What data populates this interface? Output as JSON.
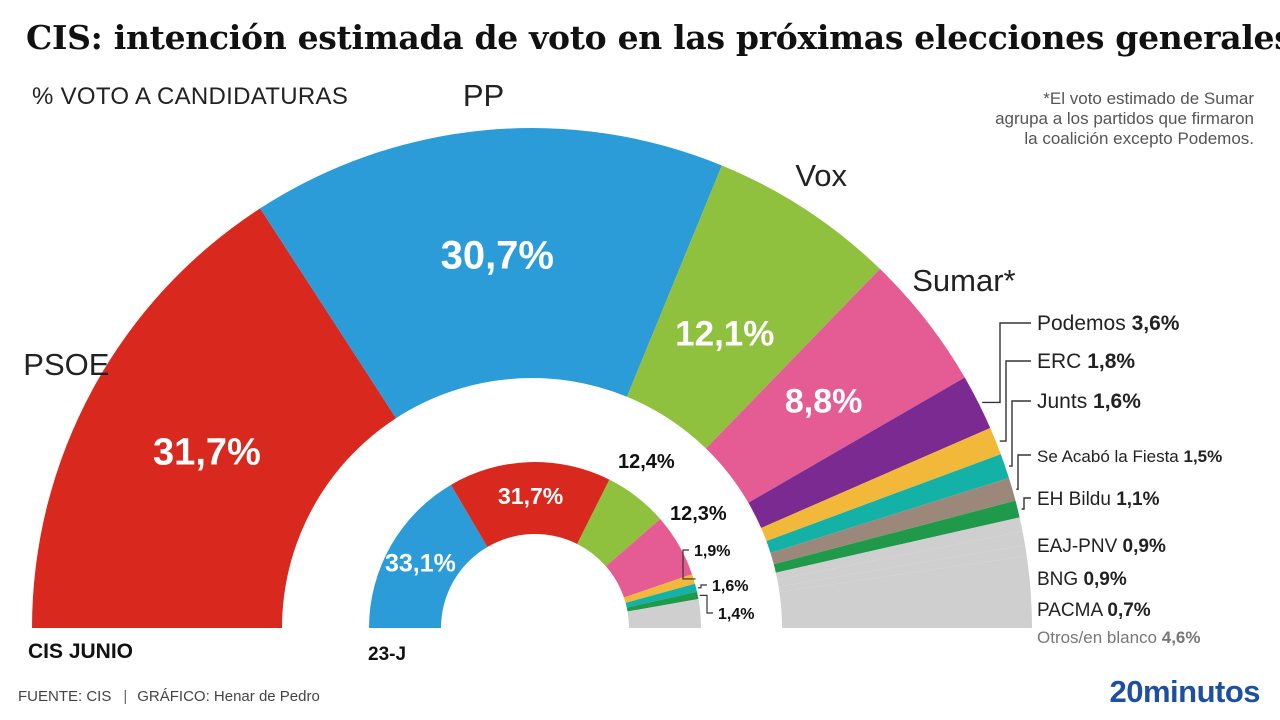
{
  "header": {
    "title": "CIS: intención estimada de voto en las próximas elecciones generales",
    "subtitle": "% VOTO A CANDIDATURAS",
    "note_lines": [
      "*El voto estimado de Sumar",
      "agrupa a los partidos que firmaron",
      "la coalición excepto Podemos."
    ]
  },
  "footer": {
    "source": "FUENTE: CIS",
    "separator": "|",
    "credit": "GRÁFICO: Henar de Pedro",
    "brand": "20minutos"
  },
  "chart_data": [
    {
      "type": "pie",
      "variant": "semicircle",
      "label": "CIS JUNIO",
      "slices": [
        {
          "party": "PSOE",
          "value": 31.7,
          "value_label": "31,7%",
          "color": "#d9281e"
        },
        {
          "party": "PP",
          "value": 30.7,
          "value_label": "30,7%",
          "color": "#2b9cd8"
        },
        {
          "party": "Vox",
          "value": 12.1,
          "value_label": "12,1%",
          "color": "#8fc13f"
        },
        {
          "party": "Sumar*",
          "value": 8.8,
          "value_label": "8,8%",
          "color": "#e45c93"
        },
        {
          "party": "Podemos",
          "value": 3.6,
          "value_label": "3,6%",
          "color": "#7b2a92"
        },
        {
          "party": "ERC",
          "value": 1.8,
          "value_label": "1,8%",
          "color": "#f2b83a"
        },
        {
          "party": "Junts",
          "value": 1.6,
          "value_label": "1,6%",
          "color": "#14b1a6"
        },
        {
          "party": "Se Acabó la Fiesta",
          "value": 1.5,
          "value_label": "1,5%",
          "color": "#9c887a"
        },
        {
          "party": "EH Bildu",
          "value": 1.1,
          "value_label": "1,1%",
          "color": "#1f9a4a"
        },
        {
          "party": "EAJ-PNV",
          "value": 0.9,
          "value_label": "0,9%",
          "color": "#cfcfcf"
        },
        {
          "party": "BNG",
          "value": 0.9,
          "value_label": "0,9%",
          "color": "#cfcfcf"
        },
        {
          "party": "PACMA",
          "value": 0.7,
          "value_label": "0,7%",
          "color": "#cfcfcf"
        },
        {
          "party": "Otros/en blanco",
          "value": 4.6,
          "value_label": "4,6%",
          "color": "#cfcfcf"
        }
      ]
    },
    {
      "type": "pie",
      "variant": "semicircle",
      "label": "23-J",
      "slices": [
        {
          "party": "PP",
          "value": 33.1,
          "value_label": "33,1%",
          "color": "#2b9cd8"
        },
        {
          "party": "PSOE",
          "value": 31.7,
          "value_label": "31,7%",
          "color": "#d9281e"
        },
        {
          "party": "Vox",
          "value": 12.4,
          "value_label": "12,4%",
          "color": "#8fc13f"
        },
        {
          "party": "Sumar",
          "value": 12.3,
          "value_label": "12,3%",
          "color": "#e45c93"
        },
        {
          "party": "ERC",
          "value": 1.9,
          "value_label": "1,9%",
          "color": "#f2b83a"
        },
        {
          "party": "Junts",
          "value": 1.6,
          "value_label": "1,6%",
          "color": "#14b1a6"
        },
        {
          "party": "EH Bildu",
          "value": 1.4,
          "value_label": "1,4%",
          "color": "#1f9a4a"
        },
        {
          "party": "Otros",
          "value": 5.6,
          "color": "#cfcfcf"
        }
      ]
    }
  ]
}
